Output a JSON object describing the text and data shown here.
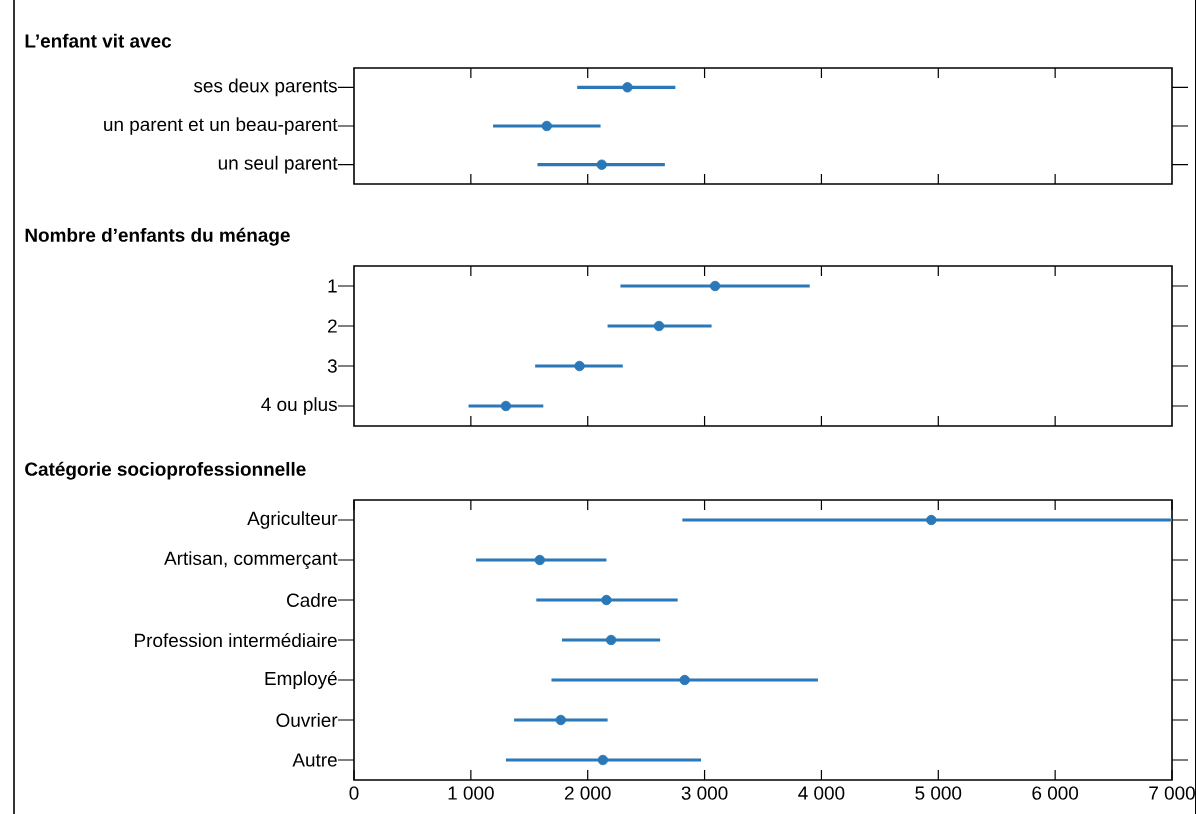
{
  "chart_data": [
    {
      "type": "scatter",
      "orientation": "horizontal",
      "title": "L’enfant vit avec",
      "marker": "circle",
      "color": "#2a78b8",
      "tick_labels": "y",
      "categories": [
        "ses deux parents",
        "un parent et un beau-parent",
        "un seul parent"
      ],
      "values": [
        2340,
        1650,
        2120
      ],
      "errors": [
        [
          1910,
          2750
        ],
        [
          1190,
          2110
        ],
        [
          1570,
          2660
        ]
      ],
      "xlim": [
        0,
        7000
      ],
      "xticks": [
        {
          "value": 1000,
          "label": null
        },
        {
          "value": 2000,
          "label": null
        },
        {
          "value": 3000,
          "label": null
        },
        {
          "value": 4000,
          "label": null
        },
        {
          "value": 5000,
          "label": null
        },
        {
          "value": 6000,
          "label": null
        }
      ]
    },
    {
      "type": "scatter",
      "orientation": "horizontal",
      "title": "Nombre d’enfants du ménage",
      "marker": "circle",
      "color": "#2a78b8",
      "tick_labels": "y",
      "categories": [
        "1",
        "2",
        "3",
        "4 ou plus"
      ],
      "values": [
        3090,
        2610,
        1930,
        1300
      ],
      "errors": [
        [
          2280,
          3900
        ],
        [
          2170,
          3060
        ],
        [
          1550,
          2300
        ],
        [
          980,
          1620
        ]
      ],
      "xlim": [
        0,
        7000
      ],
      "xticks": [
        {
          "value": 1000,
          "label": null
        },
        {
          "value": 2000,
          "label": null
        },
        {
          "value": 3000,
          "label": null
        },
        {
          "value": 4000,
          "label": null
        },
        {
          "value": 5000,
          "label": null
        },
        {
          "value": 6000,
          "label": null
        }
      ]
    },
    {
      "type": "scatter",
      "orientation": "horizontal",
      "title": "Catégorie socioprofessionnelle",
      "marker": "circle",
      "color": "#2a78b8",
      "categories": [
        "Agriculteur",
        "Artisan, commerçant",
        "Cadre",
        "Profession intermédiaire",
        "Employé",
        "Ouvrier",
        "Autre"
      ],
      "values": [
        4940,
        1590,
        2160,
        2200,
        2830,
        1770,
        2130
      ],
      "errors": [
        [
          2810,
          7000
        ],
        [
          1045,
          2160
        ],
        [
          1560,
          2770
        ],
        [
          1780,
          2620
        ],
        [
          1690,
          3970
        ],
        [
          1370,
          2170
        ],
        [
          1300,
          2970
        ]
      ],
      "xlim": [
        0,
        7000
      ],
      "xticks": [
        0,
        {
          "value": 1000,
          "label": "1 000"
        },
        {
          "value": 2000,
          "label": "2 000"
        },
        {
          "value": 3000,
          "label": "3 000"
        },
        {
          "value": 4000,
          "label": "4 000"
        },
        {
          "value": 5000,
          "label": "5 000"
        },
        {
          "value": 6000,
          "label": "6 000"
        },
        {
          "value": 7000,
          "label": "7 000"
        }
      ]
    }
  ]
}
